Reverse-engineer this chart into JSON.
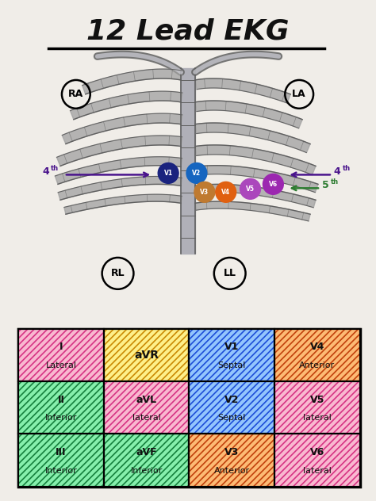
{
  "title": "12 Lead EKG",
  "bg_color": "#f0ede8",
  "table": {
    "cells": [
      {
        "row": 0,
        "col": 0,
        "label1": "I",
        "label2": "Lateral",
        "bg": "#f9b8d0",
        "hatch_color": "#d63384"
      },
      {
        "row": 0,
        "col": 1,
        "label1": "aVR",
        "label2": "",
        "bg": "#fef08a",
        "hatch_color": "#ca8a04"
      },
      {
        "row": 0,
        "col": 2,
        "label1": "V1",
        "label2": "Septal",
        "bg": "#93c5fd",
        "hatch_color": "#1d4ed8"
      },
      {
        "row": 0,
        "col": 3,
        "label1": "V4",
        "label2": "Anterior",
        "bg": "#fdba74",
        "hatch_color": "#c2410c"
      },
      {
        "row": 1,
        "col": 0,
        "label1": "II",
        "label2": "Inferior",
        "bg": "#86efac",
        "hatch_color": "#15803d"
      },
      {
        "row": 1,
        "col": 1,
        "label1": "aVL",
        "label2": "lateral",
        "bg": "#f9b8d0",
        "hatch_color": "#d63384"
      },
      {
        "row": 1,
        "col": 2,
        "label1": "V2",
        "label2": "Septal",
        "bg": "#93c5fd",
        "hatch_color": "#1d4ed8"
      },
      {
        "row": 1,
        "col": 3,
        "label1": "V5",
        "label2": "lateral",
        "bg": "#f9b8d0",
        "hatch_color": "#d63384"
      },
      {
        "row": 2,
        "col": 0,
        "label1": "III",
        "label2": "Interior",
        "bg": "#86efac",
        "hatch_color": "#15803d"
      },
      {
        "row": 2,
        "col": 1,
        "label1": "aVF",
        "label2": "Inferior",
        "bg": "#86efac",
        "hatch_color": "#15803d"
      },
      {
        "row": 2,
        "col": 2,
        "label1": "V3",
        "label2": "Anterior",
        "bg": "#fdba74",
        "hatch_color": "#c2410c"
      },
      {
        "row": 2,
        "col": 3,
        "label1": "V6",
        "label2": "lateral",
        "bg": "#f9b8d0",
        "hatch_color": "#d63384"
      }
    ]
  },
  "rib_color": "#a0a0a0",
  "rib_edge_color": "#606060",
  "sternum_color": "#b0b0b8"
}
